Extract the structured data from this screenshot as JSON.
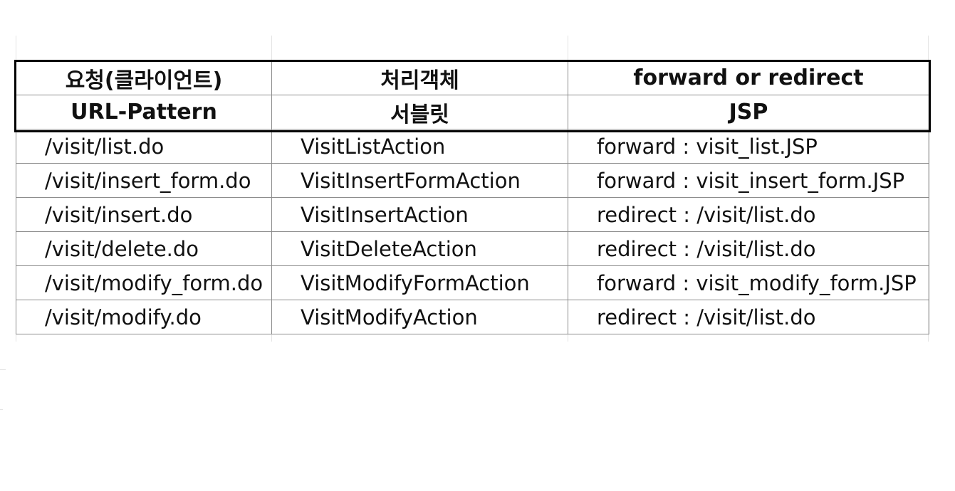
{
  "table": {
    "header_row_1": [
      "요청(클라이언트)",
      "처리객체",
      "forward or redirect"
    ],
    "header_row_2": [
      "URL-Pattern",
      "서블릿",
      "JSP"
    ],
    "rows": [
      {
        "url": "/visit/list.do",
        "servlet": "VisitListAction",
        "target": "forward : visit_list.JSP"
      },
      {
        "url": "/visit/insert_form.do",
        "servlet": "VisitInsertFormAction",
        "target": "forward : visit_insert_form.JSP"
      },
      {
        "url": "/visit/insert.do",
        "servlet": "VisitInsertAction",
        "target": "redirect : /visit/list.do"
      },
      {
        "url": "/visit/delete.do",
        "servlet": "VisitDeleteAction",
        "target": "redirect : /visit/list.do"
      },
      {
        "url": "/visit/modify_form.do",
        "servlet": "VisitModifyFormAction",
        "target": "forward : visit_modify_form.JSP"
      },
      {
        "url": "/visit/modify.do",
        "servlet": "VisitModifyAction",
        "target": "redirect : /visit/list.do"
      }
    ]
  }
}
